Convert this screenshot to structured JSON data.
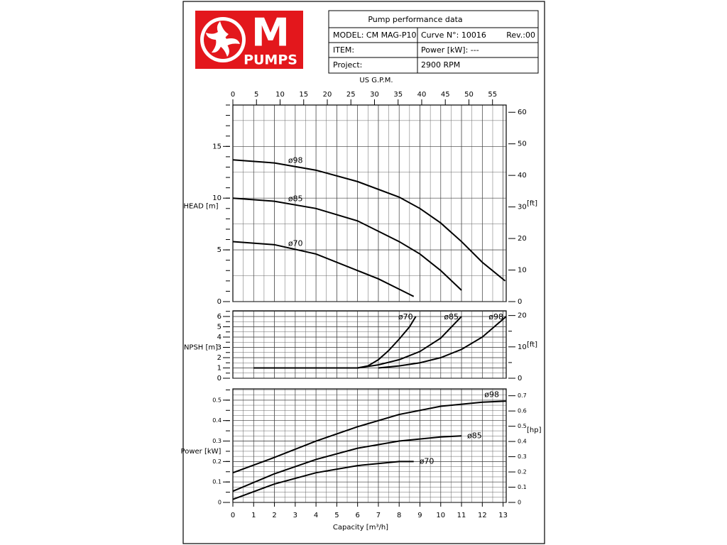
{
  "header": {
    "logo_top": "M",
    "logo_bottom": "PUMPS"
  },
  "info": {
    "title": "Pump performance data",
    "model": "MODEL: CM MAG-P10",
    "curve": "Curve N°: 10016",
    "rev": "Rev.:00",
    "item": "ITEM:",
    "power": "Power [kW]: ---",
    "project": "Project:",
    "speed": "2900 RPM"
  },
  "chart_data": [
    {
      "type": "line",
      "y_label": "HEAD [m]",
      "y2_label": "[ft]",
      "x2_label": "US G.P.M.",
      "xlim": [
        0,
        13.15
      ],
      "x2lim": [
        0,
        57.9
      ],
      "x2ticks": [
        0,
        5,
        10,
        15,
        20,
        25,
        30,
        35,
        40,
        45,
        50,
        55
      ],
      "ylim": [
        0,
        19
      ],
      "yticks": [
        0,
        5,
        10,
        15
      ],
      "y2lim": [
        0,
        62.3
      ],
      "y2ticks": [
        0,
        10,
        20,
        30,
        40,
        50,
        60
      ],
      "grid": true,
      "series": [
        {
          "name": "ø98",
          "color": "#000000",
          "x": [
            0,
            2,
            4,
            6,
            8,
            9,
            10,
            11,
            12,
            13.1
          ],
          "values": [
            13.7,
            13.4,
            12.7,
            11.6,
            10.1,
            9.0,
            7.6,
            5.8,
            3.8,
            2.0
          ]
        },
        {
          "name": "ø85",
          "color": "#000000",
          "x": [
            0,
            2,
            4,
            6,
            8,
            9,
            10,
            11
          ],
          "values": [
            10.0,
            9.7,
            9.0,
            7.8,
            5.8,
            4.6,
            3.0,
            1.1
          ]
        },
        {
          "name": "ø70",
          "color": "#000000",
          "x": [
            0,
            2,
            4,
            6,
            7,
            8,
            8.7
          ],
          "values": [
            5.8,
            5.5,
            4.6,
            3.0,
            2.2,
            1.2,
            0.5
          ]
        }
      ]
    },
    {
      "type": "line",
      "y_label": "NPSH [m]",
      "y2_label": "[ft]",
      "xlim": [
        0,
        13.15
      ],
      "ylim": [
        0,
        6.55
      ],
      "yticks": [
        0,
        1,
        2,
        3,
        4,
        5,
        6
      ],
      "y2lim": [
        0,
        21.5
      ],
      "y2ticks": [
        0,
        10,
        20
      ],
      "grid": true,
      "series": [
        {
          "name": "ø70",
          "color": "#000000",
          "x": [
            1,
            6,
            6.5,
            7,
            7.5,
            8,
            8.5,
            8.8
          ],
          "values": [
            1,
            1,
            1.2,
            1.8,
            2.7,
            3.8,
            5.0,
            6.0
          ]
        },
        {
          "name": "ø85",
          "color": "#000000",
          "x": [
            6,
            7,
            8,
            9,
            10,
            11
          ],
          "values": [
            1,
            1.3,
            1.8,
            2.6,
            3.9,
            6.0
          ]
        },
        {
          "name": "ø98",
          "color": "#000000",
          "x": [
            7,
            8,
            9,
            10,
            11,
            12,
            13.15
          ],
          "values": [
            1,
            1.2,
            1.5,
            2.0,
            2.8,
            4.0,
            6.0
          ]
        }
      ]
    },
    {
      "type": "line",
      "y_label": "Power [kW]",
      "y2_label": "[hp]",
      "x_label": "Capacity [m³/h]",
      "xlim": [
        0,
        13.15
      ],
      "xticks": [
        0,
        1,
        2,
        3,
        4,
        5,
        6,
        7,
        8,
        9,
        10,
        11,
        12,
        13
      ],
      "ylim": [
        0,
        0.555
      ],
      "yticks": [
        0,
        0.1,
        0.2,
        0.3,
        0.4,
        0.5
      ],
      "y2lim": [
        0,
        0.745
      ],
      "y2ticks": [
        0,
        0.1,
        0.2,
        0.3,
        0.4,
        0.5,
        0.6,
        0.7
      ],
      "grid": true,
      "series": [
        {
          "name": "ø98",
          "color": "#000000",
          "x": [
            0,
            2,
            4,
            6,
            8,
            10,
            12,
            13.15
          ],
          "values": [
            0.145,
            0.22,
            0.3,
            0.37,
            0.43,
            0.47,
            0.49,
            0.495
          ]
        },
        {
          "name": "ø85",
          "color": "#000000",
          "x": [
            0,
            2,
            4,
            6,
            8,
            10,
            11
          ],
          "values": [
            0.055,
            0.14,
            0.21,
            0.265,
            0.3,
            0.32,
            0.325
          ]
        },
        {
          "name": "ø70",
          "color": "#000000",
          "x": [
            0,
            2,
            4,
            6,
            8,
            8.7
          ],
          "values": [
            0.015,
            0.09,
            0.145,
            0.18,
            0.2,
            0.2
          ]
        }
      ]
    }
  ]
}
